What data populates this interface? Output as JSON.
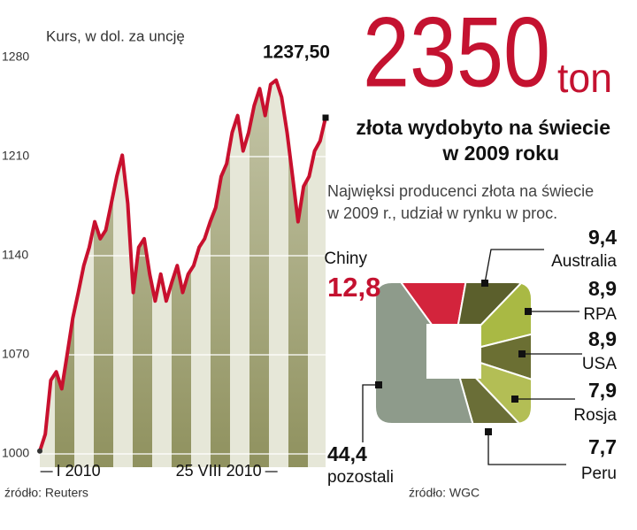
{
  "headline": {
    "number": "2350",
    "unit": "ton",
    "lines": [
      "złota wydobyto na świecie",
      "w 2009 roku"
    ]
  },
  "chart_data": [
    {
      "type": "line",
      "title": "Kurs, w dol. za uncję",
      "source": "źródło: Reuters",
      "categories": [
        null,
        null,
        null,
        "I 2010",
        null,
        null,
        null,
        null,
        null,
        null,
        null,
        null,
        null,
        null,
        null,
        null,
        null,
        null,
        null,
        null,
        null,
        null,
        null,
        null,
        null,
        null,
        null,
        null,
        null,
        null,
        null,
        null,
        null,
        null,
        null,
        null,
        null,
        null,
        null,
        null,
        null,
        "25 VIII 2010",
        null,
        null,
        null,
        null,
        null,
        null,
        null,
        null,
        null,
        null,
        null
      ],
      "series": [
        {
          "name": "Kurs",
          "color": "#c8102e",
          "values": [
            1002,
            1014,
            1052,
            1058,
            1046,
            1071,
            1096,
            1114,
            1133,
            1146,
            1164,
            1152,
            1158,
            1177,
            1196,
            1211,
            1177,
            1114,
            1146,
            1152,
            1127,
            1108,
            1127,
            1108,
            1121,
            1133,
            1114,
            1127,
            1133,
            1146,
            1152,
            1164,
            1174,
            1196,
            1205,
            1227,
            1239,
            1214,
            1227,
            1246,
            1258,
            1239,
            1261,
            1264,
            1252,
            1227,
            1196,
            1164,
            1189,
            1196,
            1214,
            1221,
            1237.5
          ],
          "last_value_label": "1237,50"
        }
      ],
      "ylim": [
        1000,
        1280
      ],
      "yticks": [
        1000,
        1070,
        1140,
        1210,
        1280
      ],
      "grid": true
    },
    {
      "type": "pie",
      "title": [
        "Najwięksi producenci złota na świecie",
        "w 2009 r., udział w rynku w proc."
      ],
      "source": "źródło: WGC",
      "categories": [
        "Chiny",
        "Australia",
        "RPA",
        "USA",
        "Rosja",
        "Peru",
        "pozostali"
      ],
      "values": [
        12.8,
        9.4,
        8.9,
        8.9,
        7.9,
        7.7,
        44.4
      ],
      "value_labels": [
        "12,8",
        "9,4",
        "8,9",
        "8,9",
        "7,9",
        "7,7",
        "44,4"
      ],
      "colors": [
        "#d3243c",
        "#5b5f2c",
        "#a9b944",
        "#6b6f33",
        "#b3be55",
        "#6a6e37",
        "#8e9b8b"
      ]
    }
  ]
}
